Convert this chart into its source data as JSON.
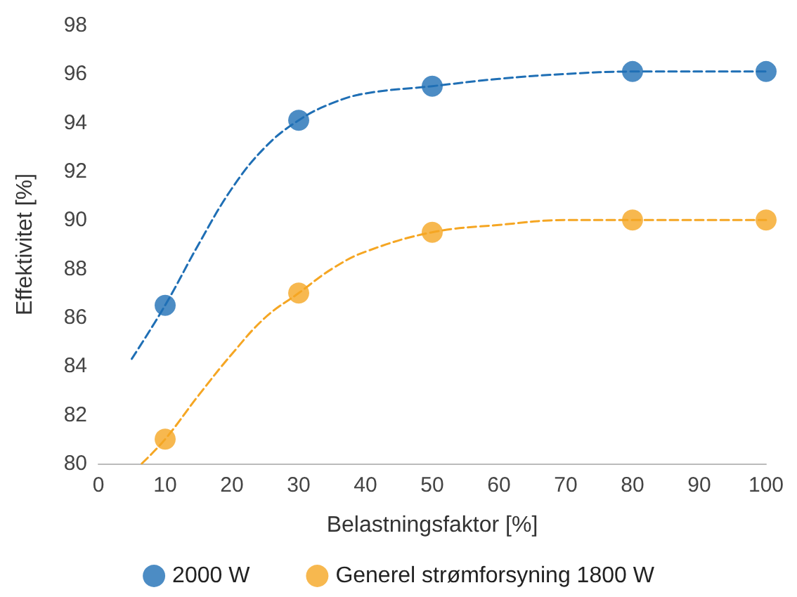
{
  "chart_data": {
    "type": "scatter",
    "xlabel": "Belastningsfaktor [%]",
    "ylabel": "Effektivitet [%]",
    "xlim": [
      0,
      100
    ],
    "xticks": [
      0,
      10,
      20,
      30,
      40,
      50,
      60,
      70,
      80,
      90,
      100
    ],
    "ylim": [
      80,
      98
    ],
    "yticks": [
      80,
      82,
      84,
      86,
      88,
      90,
      92,
      94,
      96,
      98
    ],
    "grid": false,
    "legend": "bottom",
    "series": [
      {
        "type": "line",
        "color": "#1f6fb5",
        "marker": "none",
        "line_style": "dashed",
        "x": [
          5,
          10,
          15,
          20,
          25,
          30,
          35,
          40,
          50,
          60,
          70,
          80,
          90,
          100
        ],
        "values": [
          84.3,
          86.5,
          89,
          91.3,
          93,
          94.1,
          94.8,
          95.2,
          95.5,
          95.8,
          96,
          96.1,
          96.1,
          96.1
        ]
      },
      {
        "type": "line",
        "color": "#f5a623",
        "marker": "none",
        "line_style": "dashed",
        "x": [
          6.5,
          10,
          15,
          20,
          25,
          30,
          35,
          40,
          50,
          60,
          70,
          80,
          90,
          100
        ],
        "values": [
          80,
          81,
          82.8,
          84.5,
          86,
          87,
          88,
          88.7,
          89.5,
          89.8,
          90,
          90,
          90,
          90
        ]
      },
      {
        "name": "2000 W",
        "color": "#1f6fb5",
        "marker": "circle",
        "x": [
          10,
          30,
          50,
          80,
          100
        ],
        "values": [
          86.5,
          94.1,
          95.5,
          96.1,
          96.1
        ]
      },
      {
        "name": "Generel strømforsyning 1800 W",
        "color": "#f5a623",
        "marker": "circle",
        "x": [
          10,
          30,
          50,
          80,
          100
        ],
        "values": [
          81,
          87,
          89.5,
          90,
          90
        ]
      }
    ]
  }
}
